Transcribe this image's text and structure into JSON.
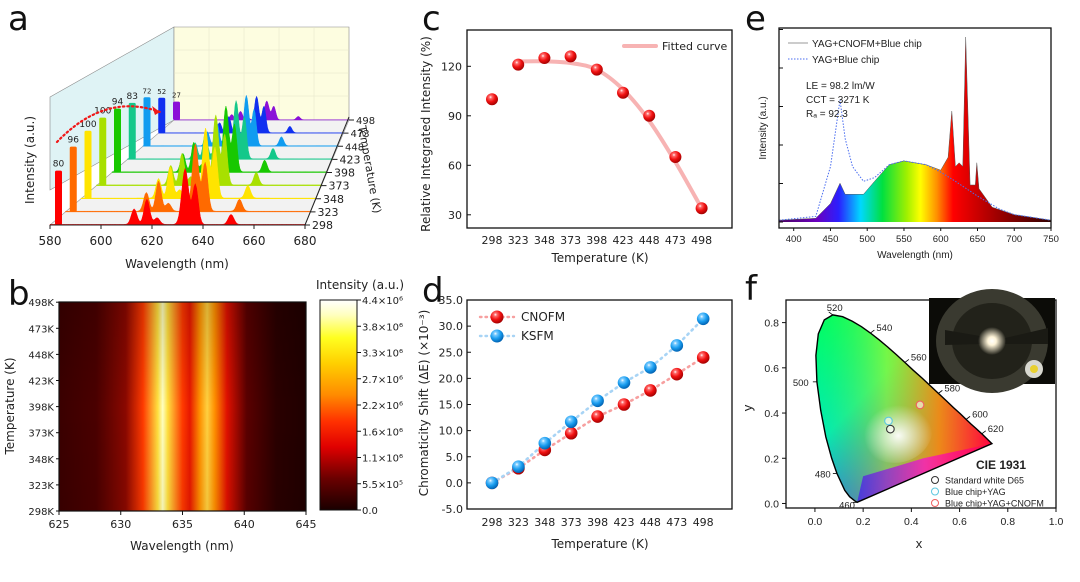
{
  "figure": {
    "panel_labels": [
      "a",
      "b",
      "c",
      "d",
      "e",
      "f"
    ]
  },
  "chart_data": [
    {
      "panel": "a",
      "type": "area",
      "title": "",
      "xlabel": "Wavelength (nm)",
      "ylabel": "Intensity (a.u.)",
      "zlabel": "Temperature (K)",
      "xlim": [
        580,
        680
      ],
      "x_ticks": [
        "580",
        "600",
        "620",
        "640",
        "660",
        "680"
      ],
      "temperatures": [
        "298",
        "323",
        "348",
        "373",
        "398",
        "423",
        "448",
        "473",
        "498"
      ],
      "series_colors": [
        "#ff0000",
        "#ff6a00",
        "#ffe400",
        "#a8e000",
        "#18c800",
        "#14c88a",
        "#109cf0",
        "#1030f0",
        "#8a10d8"
      ],
      "bar_labels": [
        "80",
        "96",
        "100",
        "100",
        "94",
        "83",
        "72",
        "52",
        "27"
      ],
      "peaks_nm": [
        613,
        618,
        622,
        633,
        637,
        651
      ],
      "peak_relative": [
        0.28,
        0.45,
        0.12,
        1.0,
        0.72,
        0.18
      ]
    },
    {
      "panel": "b",
      "type": "heatmap",
      "xlabel": "Wavelength (nm)",
      "ylabel": "Temperature (K)",
      "xlim": [
        625,
        645
      ],
      "x_ticks": [
        "625",
        "630",
        "635",
        "640",
        "645"
      ],
      "y_ticks": [
        "298K",
        "323K",
        "348K",
        "373K",
        "398K",
        "423K",
        "448K",
        "473K",
        "498K"
      ],
      "colorbar_title": "Intensity (a.u.)",
      "colorbar_ticks": [
        "0.0",
        "5.5×10⁵",
        "1.1×10⁶",
        "1.6×10⁶",
        "2.2×10⁶",
        "2.7×10⁶",
        "3.3×10⁶",
        "3.8×10⁶",
        "4.4×10⁶"
      ],
      "colorbar_range": [
        0,
        4400000
      ],
      "peak_centers_nm": [
        633,
        637
      ]
    },
    {
      "panel": "c",
      "type": "scatter",
      "xlabel": "Temperature (K)",
      "ylabel": "Relative Integrated Intensity (%)",
      "categories": [
        "298",
        "323",
        "348",
        "373",
        "398",
        "423",
        "448",
        "473",
        "498"
      ],
      "values": [
        100,
        121,
        125,
        126,
        118,
        104,
        90,
        65,
        34
      ],
      "fit_values": [
        null,
        123,
        123,
        122,
        118,
        106,
        87,
        62,
        34
      ],
      "ylim": [
        22,
        142
      ],
      "y_ticks": [
        "30",
        "60",
        "90",
        "120"
      ],
      "legend": [
        "Fitted curve"
      ],
      "legend_position": "top-right",
      "marker_color": "#f01818",
      "fit_color": "#f7b3b3"
    },
    {
      "panel": "d",
      "type": "line",
      "xlabel": "Temperature (K)",
      "ylabel": "Chromaticity Shift (ΔE) (×10⁻³)",
      "categories": [
        "298",
        "323",
        "348",
        "373",
        "398",
        "423",
        "448",
        "473",
        "498"
      ],
      "series": [
        {
          "name": "CNOFM",
          "values": [
            0.0,
            2.8,
            6.3,
            9.5,
            12.7,
            15.0,
            17.7,
            20.8,
            24.0
          ],
          "color": "#f01818",
          "line_color": "#f7a0a0"
        },
        {
          "name": "KSFM",
          "values": [
            0.0,
            3.1,
            7.6,
            11.7,
            15.7,
            19.2,
            22.1,
            26.3,
            31.4
          ],
          "color": "#1a9ef0",
          "line_color": "#a8d4f5"
        }
      ],
      "ylim": [
        -5,
        35
      ],
      "y_ticks": [
        "-5.0",
        "0.0",
        "5.0",
        "10.0",
        "15.0",
        "20.0",
        "25.0",
        "30.0",
        "35.0"
      ],
      "legend_position": "top-left"
    },
    {
      "panel": "e",
      "type": "area",
      "xlabel": "Wavelength (nm)",
      "ylabel": "Intensity (a.u.)",
      "xlim": [
        380,
        750
      ],
      "x_ticks": [
        "400",
        "450",
        "500",
        "550",
        "600",
        "650",
        "700",
        "750"
      ],
      "legend": [
        "YAG+CNOFM+Blue chip",
        "YAG+Blue chip"
      ],
      "annotations": [
        "LE = 98.2 lm/W",
        "CCT = 3271 K",
        "Rₐ = 92.3"
      ],
      "series": [
        {
          "name": "YAG+CNOFM+Blue chip",
          "points": [
            [
              380,
              0.01
            ],
            [
              430,
              0.02
            ],
            [
              450,
              0.1
            ],
            [
              463,
              0.21
            ],
            [
              470,
              0.15
            ],
            [
              480,
              0.15
            ],
            [
              495,
              0.15
            ],
            [
              510,
              0.22
            ],
            [
              530,
              0.31
            ],
            [
              550,
              0.33
            ],
            [
              580,
              0.31
            ],
            [
              600,
              0.28
            ],
            [
              610,
              0.35
            ],
            [
              615,
              0.6
            ],
            [
              620,
              0.3
            ],
            [
              625,
              0.32
            ],
            [
              630,
              0.3
            ],
            [
              634,
              1.0
            ],
            [
              640,
              0.2
            ],
            [
              647,
              0.2
            ],
            [
              649,
              0.32
            ],
            [
              652,
              0.18
            ],
            [
              670,
              0.08
            ],
            [
              700,
              0.04
            ],
            [
              750,
              0.01
            ]
          ]
        },
        {
          "name": "YAG+Blue chip",
          "points": [
            [
              380,
              0.01
            ],
            [
              430,
              0.03
            ],
            [
              450,
              0.3
            ],
            [
              463,
              0.66
            ],
            [
              470,
              0.45
            ],
            [
              480,
              0.3
            ],
            [
              495,
              0.22
            ],
            [
              510,
              0.24
            ],
            [
              530,
              0.31
            ],
            [
              550,
              0.33
            ],
            [
              580,
              0.31
            ],
            [
              600,
              0.27
            ],
            [
              620,
              0.22
            ],
            [
              650,
              0.14
            ],
            [
              680,
              0.07
            ],
            [
              700,
              0.04
            ],
            [
              750,
              0.01
            ]
          ]
        }
      ]
    },
    {
      "panel": "f",
      "type": "scatter",
      "title": "CIE 1931",
      "xlabel": "x",
      "ylabel": "y",
      "xlim": [
        -0.12,
        1.0
      ],
      "ylim": [
        -0.02,
        0.9
      ],
      "x_ticks": [
        "0.0",
        "0.2",
        "0.4",
        "0.6",
        "0.8",
        "1.0"
      ],
      "y_ticks": [
        "0.0",
        "0.2",
        "0.4",
        "0.6",
        "0.8"
      ],
      "locus_labels": [
        "460",
        "480",
        "500",
        "520",
        "540",
        "560",
        "580",
        "600",
        "620"
      ],
      "points": [
        {
          "name": "Standard white D65",
          "x": 0.313,
          "y": 0.329,
          "color": "#333333"
        },
        {
          "name": "Blue chip+YAG",
          "x": 0.305,
          "y": 0.365,
          "color": "#5ec8e0"
        },
        {
          "name": "Blue chip+YAG+CNOFM",
          "x": 0.436,
          "y": 0.436,
          "color": "#f06060"
        }
      ],
      "inset": "photo of LED device"
    }
  ]
}
